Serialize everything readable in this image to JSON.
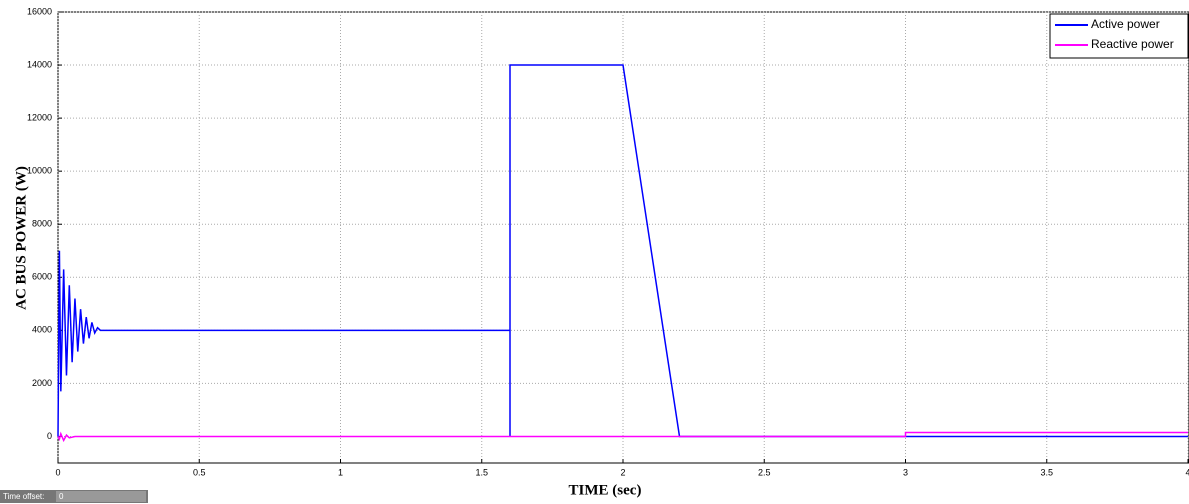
{
  "chart_data": {
    "type": "line",
    "xlabel": "TIME (sec)",
    "ylabel": "AC BUS POWER (W)",
    "xlim": [
      0,
      4
    ],
    "ylim": [
      -1000,
      16000
    ],
    "xticks": [
      0,
      0.5,
      1,
      1.5,
      2,
      2.5,
      3,
      3.5,
      4
    ],
    "yticks": [
      0,
      2000,
      4000,
      6000,
      8000,
      10000,
      12000,
      14000,
      16000
    ],
    "grid": true,
    "legend": "upper right",
    "series": [
      {
        "name": "Active power",
        "color": "#0000ff",
        "x": [
          0,
          0.005,
          0.01,
          0.02,
          0.03,
          0.04,
          0.05,
          0.06,
          0.07,
          0.08,
          0.09,
          0.1,
          0.11,
          0.12,
          0.13,
          0.14,
          0.15,
          1.6,
          1.6,
          1.6,
          2.0,
          2.2,
          3,
          4
        ],
        "values": [
          0,
          7000,
          1700,
          6300,
          2300,
          5700,
          2800,
          5200,
          3200,
          4800,
          3500,
          4500,
          3700,
          4300,
          3900,
          4100,
          4000,
          4000,
          0,
          14000,
          14000,
          0,
          0,
          0
        ]
      },
      {
        "name": "Reactive power",
        "color": "#ff00ff",
        "x": [
          0,
          0.005,
          0.01,
          0.02,
          0.03,
          0.04,
          0.06,
          3,
          3,
          4
        ],
        "values": [
          0,
          -100,
          100,
          -150,
          50,
          -50,
          0,
          0,
          150,
          150
        ]
      }
    ],
    "time_offset_label": "Time offset:",
    "time_offset_value": "0"
  }
}
